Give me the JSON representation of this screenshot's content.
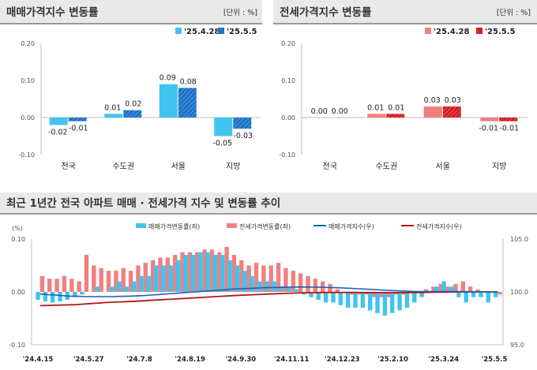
{
  "chart_data": [
    {
      "type": "bar",
      "title": "매매가격지수 변동률",
      "unit": "[단위 : %]",
      "categories": [
        "전국",
        "수도권",
        "서울",
        "지방"
      ],
      "series": [
        {
          "name": "'25.4.28",
          "color": "#40c4f0",
          "values": [
            -0.02,
            0.01,
            0.09,
            -0.05
          ],
          "labels": [
            "-0.02",
            "0.01",
            "0.09",
            "-0.05"
          ]
        },
        {
          "name": "'25.5.5",
          "color": "#1f73c8",
          "values": [
            -0.01,
            0.02,
            0.08,
            -0.03
          ],
          "labels": [
            "-0.01",
            "0.02",
            "0.08",
            "-0.03"
          ]
        }
      ],
      "ylim": [
        -0.1,
        0.2
      ],
      "yticks": [
        "0.20",
        "0.10",
        "0.00",
        "-0.10"
      ]
    },
    {
      "type": "bar",
      "title": "전세가격지수 변동률",
      "unit": "[단위 : %]",
      "categories": [
        "전국",
        "수도권",
        "서울",
        "지방"
      ],
      "series": [
        {
          "name": "'25.4.28",
          "color": "#f08080",
          "values": [
            0.0,
            0.01,
            0.03,
            -0.01
          ],
          "labels": [
            "0.00",
            "0.01",
            "0.03",
            "-0.01"
          ]
        },
        {
          "name": "'25.5.5",
          "color": "#d42020",
          "values": [
            0.0,
            0.01,
            0.03,
            -0.01
          ],
          "labels": [
            "0.00",
            "0.01",
            "0.03",
            "-0.01"
          ]
        }
      ],
      "ylim": [
        -0.1,
        0.2
      ],
      "yticks": [
        "0.20",
        "0.10",
        "0.00",
        "-0.10"
      ]
    },
    {
      "type": "bar+line",
      "title": "최근 1년간 전국 아파트 매매 · 전세가격 지수 및 변동률 추이",
      "left_unit": "(%)",
      "left_ylim": [
        -0.1,
        0.1
      ],
      "left_yticks": [
        "0.10",
        "0.00",
        "-0.10"
      ],
      "right_ylim": [
        95.0,
        105.0
      ],
      "right_yticks": [
        "105.0",
        "100.0",
        "95.0"
      ],
      "x_labels": [
        "'24.4.15",
        "'24.5.27",
        "'24.7.8",
        "'24.8.19",
        "'24.9.30",
        "'24.11.11",
        "'24.12.23",
        "'25.2.10",
        "'25.3.24",
        "'25.5.5"
      ],
      "legend": [
        "매매가격변동률(좌)",
        "전세가격변동률(좌)",
        "매매가격지수(우)",
        "전세가격지수(우)"
      ],
      "colors": {
        "sale_bar": "#40c4f0",
        "jeonse_bar": "#f08080",
        "sale_line": "#1f5fb0",
        "jeonse_line": "#b01818"
      },
      "sale_change": [
        -0.015,
        -0.018,
        -0.02,
        -0.018,
        -0.015,
        -0.01,
        -0.005,
        0.0,
        0.01,
        0.0,
        0.01,
        0.02,
        0.01,
        0.02,
        0.03,
        0.03,
        0.05,
        0.05,
        0.05,
        0.06,
        0.07,
        0.07,
        0.075,
        0.075,
        0.07,
        0.07,
        0.06,
        0.05,
        0.04,
        0.03,
        0.02,
        0.02,
        0.02,
        0.01,
        0.01,
        0.005,
        -0.005,
        -0.01,
        -0.015,
        -0.02,
        -0.02,
        -0.025,
        -0.03,
        -0.03,
        -0.03,
        -0.035,
        -0.04,
        -0.045,
        -0.04,
        -0.035,
        -0.03,
        -0.02,
        -0.01,
        0.0,
        0.01,
        0.02,
        0.01,
        -0.01,
        -0.02,
        -0.01,
        -0.01,
        -0.02,
        -0.01
      ],
      "jeonse_change": [
        0.03,
        0.025,
        0.025,
        0.03,
        0.025,
        0.02,
        0.07,
        0.05,
        0.045,
        0.04,
        0.04,
        0.045,
        0.04,
        0.05,
        0.055,
        0.06,
        0.065,
        0.065,
        0.07,
        0.075,
        0.075,
        0.075,
        0.08,
        0.08,
        0.075,
        0.085,
        0.07,
        0.06,
        0.05,
        0.055,
        0.05,
        0.05,
        0.055,
        0.045,
        0.04,
        0.035,
        0.03,
        0.025,
        0.02,
        0.015,
        0.005,
        0.0,
        -0.005,
        -0.005,
        -0.005,
        -0.01,
        -0.01,
        -0.01,
        -0.005,
        -0.005,
        0.0,
        0.0,
        0.005,
        0.01,
        0.015,
        0.01,
        0.015,
        0.02,
        0.01,
        0.005,
        0.0,
        0.0,
        -0.005
      ],
      "sale_index": [
        99.8,
        99.75,
        99.7,
        99.65,
        99.6,
        99.6,
        99.55,
        99.55,
        99.55,
        99.55,
        99.55,
        99.58,
        99.6,
        99.62,
        99.65,
        99.7,
        99.75,
        99.8,
        99.85,
        99.9,
        99.95,
        100.0,
        100.05,
        100.1,
        100.15,
        100.2,
        100.25,
        100.3,
        100.32,
        100.35,
        100.38,
        100.4,
        100.42,
        100.44,
        100.45,
        100.46,
        100.46,
        100.45,
        100.44,
        100.42,
        100.4,
        100.37,
        100.34,
        100.3,
        100.27,
        100.23,
        100.19,
        100.15,
        100.12,
        100.09,
        100.06,
        100.04,
        100.03,
        100.03,
        100.03,
        100.04,
        100.04,
        100.03,
        100.02,
        100.01,
        100.0,
        99.99,
        99.98
      ],
      "jeonse_index": [
        98.7,
        98.72,
        98.74,
        98.76,
        98.78,
        98.8,
        98.85,
        98.9,
        98.95,
        99.0,
        99.03,
        99.06,
        99.09,
        99.12,
        99.16,
        99.2,
        99.24,
        99.28,
        99.32,
        99.36,
        99.4,
        99.44,
        99.48,
        99.52,
        99.56,
        99.6,
        99.64,
        99.68,
        99.71,
        99.74,
        99.77,
        99.8,
        99.83,
        99.86,
        99.88,
        99.9,
        99.92,
        99.93,
        99.94,
        99.95,
        99.95,
        99.95,
        99.95,
        99.95,
        99.94,
        99.94,
        99.93,
        99.93,
        99.93,
        99.93,
        99.93,
        99.94,
        99.95,
        99.96,
        99.97,
        99.98,
        99.99,
        100.0,
        100.0,
        100.0,
        100.0,
        100.0,
        100.0
      ]
    }
  ]
}
